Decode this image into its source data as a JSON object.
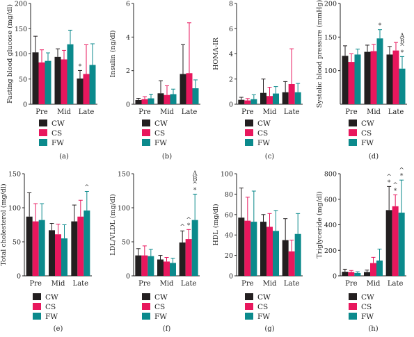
{
  "colors": {
    "CW": "#231f20",
    "CS": "#e8175d",
    "FW": "#0b8a8c"
  },
  "chart_data": [
    {
      "type": "bar",
      "panel_label": "(a)",
      "ylabel": "Fasting blood glucose (mg/dl)",
      "categories": [
        "Pre",
        "Mid",
        "Late"
      ],
      "ylim": [
        0,
        200
      ],
      "yticks": [
        0,
        50,
        100,
        150,
        200
      ],
      "legend": [
        "CW",
        "CS",
        "FW"
      ],
      "series": [
        {
          "name": "CW",
          "values": [
            103,
            94,
            51
          ],
          "errors": [
            32,
            16,
            16
          ]
        },
        {
          "name": "CS",
          "values": [
            83,
            89,
            60
          ],
          "errors": [
            25,
            18,
            58
          ]
        },
        {
          "name": "FW",
          "values": [
            86,
            119,
            78
          ],
          "errors": [
            16,
            28,
            42
          ]
        }
      ],
      "annotations": [
        {
          "series": "CW",
          "category": "Late",
          "text": "*"
        }
      ]
    },
    {
      "type": "bar",
      "panel_label": "(b)",
      "ylabel": "Insulin (ng/dl)",
      "categories": [
        "Pre",
        "Mid",
        "Late"
      ],
      "ylim": [
        0,
        6
      ],
      "yticks": [
        0,
        2,
        4,
        6
      ],
      "legend": [
        "CW",
        "CS",
        "FW"
      ],
      "series": [
        {
          "name": "CW",
          "values": [
            0.25,
            0.65,
            1.8
          ],
          "errors": [
            0.1,
            0.75,
            1.75
          ]
        },
        {
          "name": "CS",
          "values": [
            0.3,
            0.55,
            1.85
          ],
          "errors": [
            0.15,
            0.55,
            3.0
          ]
        },
        {
          "name": "FW",
          "values": [
            0.35,
            0.6,
            0.95
          ],
          "errors": [
            0.25,
            0.3,
            0.5
          ]
        }
      ],
      "annotations": []
    },
    {
      "type": "bar",
      "panel_label": "(c)",
      "ylabel": "HOMA-IR",
      "categories": [
        "Pre",
        "Mid",
        "Late"
      ],
      "ylim": [
        0,
        8
      ],
      "yticks": [
        0,
        2,
        4,
        6,
        8
      ],
      "legend": [
        "CW",
        "CS",
        "FW"
      ],
      "series": [
        {
          "name": "CW",
          "values": [
            0.35,
            0.9,
            0.95
          ],
          "errors": [
            0.2,
            1.1,
            0.85
          ]
        },
        {
          "name": "CS",
          "values": [
            0.3,
            0.65,
            1.6
          ],
          "errors": [
            0.15,
            0.7,
            2.8
          ]
        },
        {
          "name": "FW",
          "values": [
            0.4,
            0.85,
            0.95
          ],
          "errors": [
            0.35,
            0.55,
            0.7
          ]
        }
      ],
      "annotations": []
    },
    {
      "type": "bar",
      "panel_label": "(d)",
      "ylabel": "Systolic blood pressure (mmHg)",
      "categories": [
        "Pre",
        "Mid",
        "Late"
      ],
      "ylim": [
        50,
        200
      ],
      "yticks": [
        100,
        150,
        200
      ],
      "legend": [
        "CW",
        "CS",
        "FW"
      ],
      "series": [
        {
          "name": "CW",
          "values": [
            122,
            128,
            124
          ],
          "errors": [
            15,
            10,
            12
          ]
        },
        {
          "name": "CS",
          "values": [
            113,
            129,
            130
          ],
          "errors": [
            12,
            10,
            12
          ]
        },
        {
          "name": "FW",
          "values": [
            124,
            148,
            103
          ],
          "errors": [
            8,
            13,
            18
          ]
        }
      ],
      "annotations": [
        {
          "series": "FW",
          "category": "Mid",
          "text": "*"
        },
        {
          "series": "FW",
          "category": "Late",
          "text": "*"
        },
        {
          "series": "FW",
          "category": "Late",
          "text": "^"
        },
        {
          "series": "FW",
          "category": "Late",
          "text": "B"
        },
        {
          "series": "FW",
          "category": "Late",
          "text": "A"
        }
      ]
    },
    {
      "type": "bar",
      "panel_label": "(e)",
      "ylabel": "Total cholesterol (mg/dl)",
      "categories": [
        "Pre",
        "Mid",
        "Late"
      ],
      "ylim": [
        0,
        150
      ],
      "yticks": [
        0,
        50,
        100,
        150
      ],
      "legend": [
        "CW",
        "CS",
        "FW"
      ],
      "series": [
        {
          "name": "CW",
          "values": [
            87,
            67,
            80
          ],
          "errors": [
            35,
            10,
            24
          ]
        },
        {
          "name": "CS",
          "values": [
            80,
            61,
            87
          ],
          "errors": [
            26,
            15,
            24
          ]
        },
        {
          "name": "FW",
          "values": [
            82,
            55,
            96
          ],
          "errors": [
            24,
            20,
            28
          ]
        }
      ],
      "annotations": [
        {
          "series": "FW",
          "category": "Late",
          "text": "^"
        }
      ]
    },
    {
      "type": "bar",
      "panel_label": "(f)",
      "ylabel": "LDL/VLDL (mg/dl)",
      "categories": [
        "Pre",
        "Mid",
        "Late"
      ],
      "ylim": [
        0,
        150
      ],
      "yticks": [
        0,
        50,
        100,
        150
      ],
      "legend": [
        "CW",
        "CS",
        "FW"
      ],
      "series": [
        {
          "name": "CW",
          "values": [
            30,
            24,
            49
          ],
          "errors": [
            10,
            6,
            17
          ]
        },
        {
          "name": "CS",
          "values": [
            30,
            21,
            54
          ],
          "errors": [
            14,
            6,
            14
          ]
        },
        {
          "name": "FW",
          "values": [
            29,
            19,
            82
          ],
          "errors": [
            10,
            7,
            38
          ]
        }
      ],
      "annotations": [
        {
          "series": "CW",
          "category": "Late",
          "text": "^"
        },
        {
          "series": "CS",
          "category": "Late",
          "text": "*"
        },
        {
          "series": "CS",
          "category": "Late",
          "text": "^"
        },
        {
          "series": "FW",
          "category": "Late",
          "text": "*"
        },
        {
          "series": "FW",
          "category": "Late",
          "text": "^"
        },
        {
          "series": "FW",
          "category": "Late",
          "text": "B"
        },
        {
          "series": "FW",
          "category": "Late",
          "text": "A"
        }
      ]
    },
    {
      "type": "bar",
      "panel_label": "(g)",
      "ylabel": "HDL (mg/dl)",
      "categories": [
        "Pre",
        "Mid",
        "Late"
      ],
      "ylim": [
        0,
        100
      ],
      "yticks": [
        0,
        20,
        40,
        60,
        80,
        100
      ],
      "legend": [
        "CW",
        "CS",
        "FW"
      ],
      "series": [
        {
          "name": "CW",
          "values": [
            57,
            53,
            35
          ],
          "errors": [
            29,
            7,
            21
          ]
        },
        {
          "name": "CS",
          "values": [
            54,
            48,
            24
          ],
          "errors": [
            23,
            13,
            11
          ]
        },
        {
          "name": "FW",
          "values": [
            53,
            44,
            41
          ],
          "errors": [
            30,
            20,
            20
          ]
        }
      ],
      "annotations": []
    },
    {
      "type": "bar",
      "panel_label": "(h)",
      "ylabel": "Triglyceride (mg/dl)",
      "categories": [
        "Pre",
        "Mid",
        "Late"
      ],
      "ylim": [
        0,
        800
      ],
      "yticks": [
        0,
        200,
        400,
        600,
        800
      ],
      "legend": [
        "CW",
        "CS",
        "FW"
      ],
      "series": [
        {
          "name": "CW",
          "values": [
            32,
            30,
            515
          ],
          "errors": [
            20,
            15,
            185
          ]
        },
        {
          "name": "CS",
          "values": [
            30,
            100,
            545
          ],
          "errors": [
            12,
            45,
            90
          ]
        },
        {
          "name": "FW",
          "values": [
            22,
            120,
            495
          ],
          "errors": [
            10,
            90,
            255
          ]
        }
      ],
      "annotations": [
        {
          "series": "CW",
          "category": "Late",
          "text": "*"
        },
        {
          "series": "CW",
          "category": "Late",
          "text": "^"
        },
        {
          "series": "CS",
          "category": "Late",
          "text": "*"
        },
        {
          "series": "CS",
          "category": "Late",
          "text": "^"
        },
        {
          "series": "FW",
          "category": "Late",
          "text": "*"
        },
        {
          "series": "FW",
          "category": "Late",
          "text": "^"
        }
      ]
    }
  ]
}
